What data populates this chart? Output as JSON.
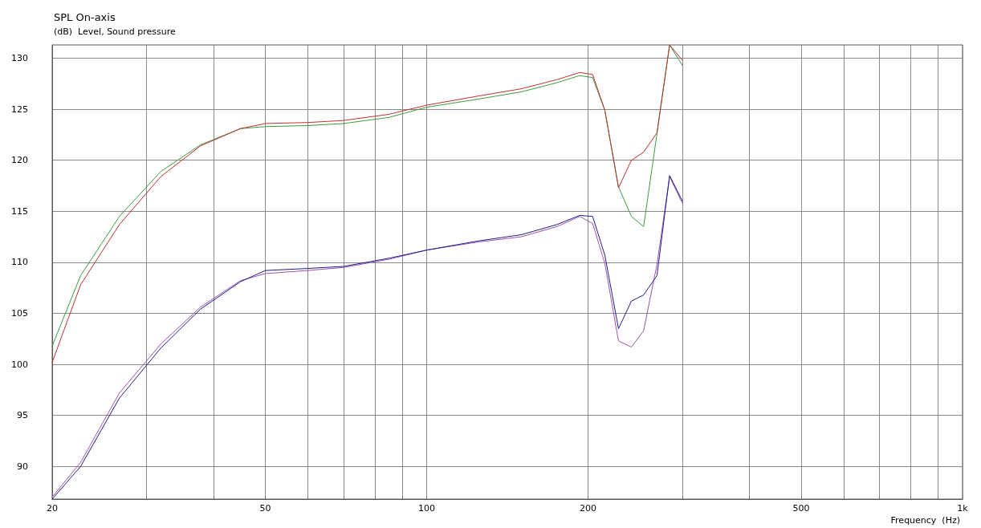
{
  "chart_data": {
    "type": "line",
    "title": "SPL On-axis",
    "ylabel": "(dB)  Level, Sound pressure",
    "xlabel": "Frequency  (Hz)",
    "log": "x",
    "grid": true,
    "marker": "none",
    "line_style": "solid",
    "xlim": [
      20,
      1000
    ],
    "ylim": [
      86.8,
      131.3
    ],
    "xticks": [
      20,
      {
        "value": 30,
        "label": null
      },
      {
        "value": 40,
        "label": null
      },
      50,
      {
        "value": 60,
        "label": null
      },
      {
        "value": 70,
        "label": null
      },
      {
        "value": 80,
        "label": null
      },
      {
        "value": 90,
        "label": null
      },
      100,
      200,
      {
        "value": 300,
        "label": null
      },
      {
        "value": 400,
        "label": null
      },
      500,
      {
        "value": 600,
        "label": null
      },
      {
        "value": 700,
        "label": null
      },
      {
        "value": 800,
        "label": null
      },
      {
        "value": 900,
        "label": null
      },
      {
        "value": 1000,
        "label": "1k"
      }
    ],
    "yticks": [
      90,
      95,
      100,
      105,
      110,
      115,
      120,
      125,
      130
    ],
    "x": [
      20,
      22.6,
      26.7,
      31.9,
      37.8,
      44.9,
      50,
      60,
      70,
      85,
      100,
      125,
      150,
      175,
      193,
      204,
      215,
      228,
      241,
      254,
      269,
      284,
      300
    ],
    "series": [
      {
        "color": "#3c9a3c",
        "values": [
          101.8,
          108.7,
          114.5,
          118.9,
          121.5,
          123.1,
          123.3,
          123.4,
          123.6,
          124.2,
          125.2,
          126.0,
          126.7,
          127.6,
          128.3,
          128.1,
          124.9,
          117.4,
          114.5,
          113.5,
          122.6,
          131.3,
          129.3
        ]
      },
      {
        "color": "#c0302d",
        "values": [
          100.2,
          107.8,
          113.7,
          118.4,
          121.4,
          123.1,
          123.6,
          123.7,
          123.9,
          124.5,
          125.4,
          126.3,
          127.0,
          127.9,
          128.6,
          128.4,
          124.9,
          117.3,
          120.0,
          120.8,
          122.7,
          131.3,
          129.8
        ]
      },
      {
        "color": "#a050b0",
        "values": [
          87.0,
          90.4,
          97.2,
          102.0,
          105.6,
          108.2,
          108.9,
          109.2,
          109.5,
          110.3,
          111.2,
          112.0,
          112.5,
          113.5,
          114.5,
          113.8,
          109.9,
          102.3,
          101.7,
          103.3,
          109.8,
          118.4,
          115.8
        ]
      },
      {
        "color": "#1e1e8c",
        "values": [
          86.8,
          90.0,
          96.7,
          101.6,
          105.4,
          108.1,
          109.2,
          109.4,
          109.6,
          110.4,
          111.2,
          112.1,
          112.7,
          113.7,
          114.6,
          114.5,
          110.7,
          103.5,
          106.2,
          106.8,
          108.7,
          118.5,
          116.0
        ]
      }
    ]
  }
}
